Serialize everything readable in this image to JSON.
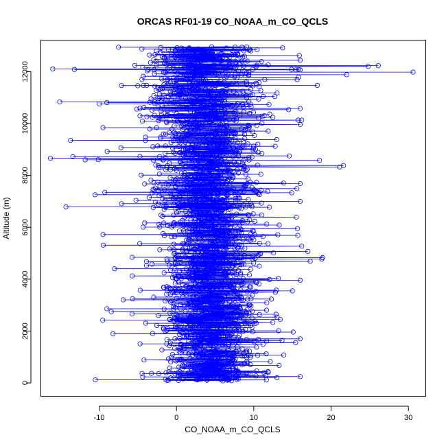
{
  "chart_data": {
    "type": "scatter",
    "title": "ORCAS RF01-19 CO_NOAA_m_CO_QCLS",
    "xlabel": "CO_NOAA_m_CO_QCLS",
    "ylabel": "Altitude (m)",
    "xlim": [
      -17.5,
      32.2
    ],
    "ylim": [
      -500,
      13200
    ],
    "x_ticks": [
      -10,
      0,
      10,
      20,
      30
    ],
    "y_ticks": [
      0,
      2000,
      4000,
      6000,
      8000,
      10000,
      12000
    ],
    "x_tick_labels": [
      "-10",
      "0",
      "10",
      "20",
      "30"
    ],
    "y_tick_labels": [
      "0",
      "2000",
      "4000",
      "6000",
      "8000",
      "10000",
      "12000"
    ],
    "grid": false,
    "legend": "none",
    "marker": "open-circle",
    "connected": true,
    "series_color": "#0000ff",
    "core_distribution": {
      "description_units": "x spread by altitude band (data units)",
      "bands": [
        {
          "y": [
            0,
            2000
          ],
          "x_center": 4.5,
          "x_spread": 4.0
        },
        {
          "y": [
            2000,
            6000
          ],
          "x_center": 4.5,
          "x_spread": 4.2
        },
        {
          "y": [
            6000,
            10000
          ],
          "x_center": 4.0,
          "x_spread": 4.5
        },
        {
          "y": [
            10000,
            13000
          ],
          "x_center": 3.5,
          "x_spread": 5.0
        }
      ]
    },
    "highlighted_outliers": [
      {
        "x": 30.6,
        "y": 11980
      },
      {
        "x": 26.1,
        "y": 12230
      },
      {
        "x": 24.8,
        "y": 12200
      },
      {
        "x": 22.0,
        "y": 11880
      },
      {
        "x": 21.6,
        "y": 8380
      },
      {
        "x": 21.1,
        "y": 8320
      },
      {
        "x": 18.9,
        "y": 4830
      },
      {
        "x": 18.8,
        "y": 4780
      },
      {
        "x": 17.3,
        "y": 4690
      },
      {
        "x": 17.0,
        "y": 5070
      },
      {
        "x": 18.5,
        "y": 8580
      },
      {
        "x": 16.2,
        "y": 10130
      },
      {
        "x": 16.0,
        "y": 9960
      },
      {
        "x": 18.2,
        "y": 11470
      },
      {
        "x": 15.9,
        "y": 12620
      },
      {
        "x": 15.8,
        "y": 12080
      },
      {
        "x": -16.3,
        "y": 8660
      },
      {
        "x": -16.0,
        "y": 12100
      },
      {
        "x": -15.1,
        "y": 10830
      },
      {
        "x": -14.3,
        "y": 6790
      },
      {
        "x": -13.7,
        "y": 9350
      },
      {
        "x": -13.4,
        "y": 8720
      },
      {
        "x": -13.2,
        "y": 12080
      },
      {
        "x": -11.8,
        "y": 8600
      },
      {
        "x": -10.5,
        "y": 120
      },
      {
        "x": -9.5,
        "y": 9840
      },
      {
        "x": -9.5,
        "y": 5720
      },
      {
        "x": -9.0,
        "y": 2860
      },
      {
        "x": -8.2,
        "y": 1900
      },
      {
        "x": -8.0,
        "y": 4400
      },
      {
        "x": -7.5,
        "y": 12940
      },
      {
        "x": 13.0,
        "y": 200
      },
      {
        "x": 15.1,
        "y": 1960
      },
      {
        "x": 15.0,
        "y": 3550
      },
      {
        "x": 16.2,
        "y": 5270
      },
      {
        "x": 14.9,
        "y": 7330
      },
      {
        "x": 15.5,
        "y": 6390
      },
      {
        "x": 16.0,
        "y": 1700
      }
    ]
  }
}
